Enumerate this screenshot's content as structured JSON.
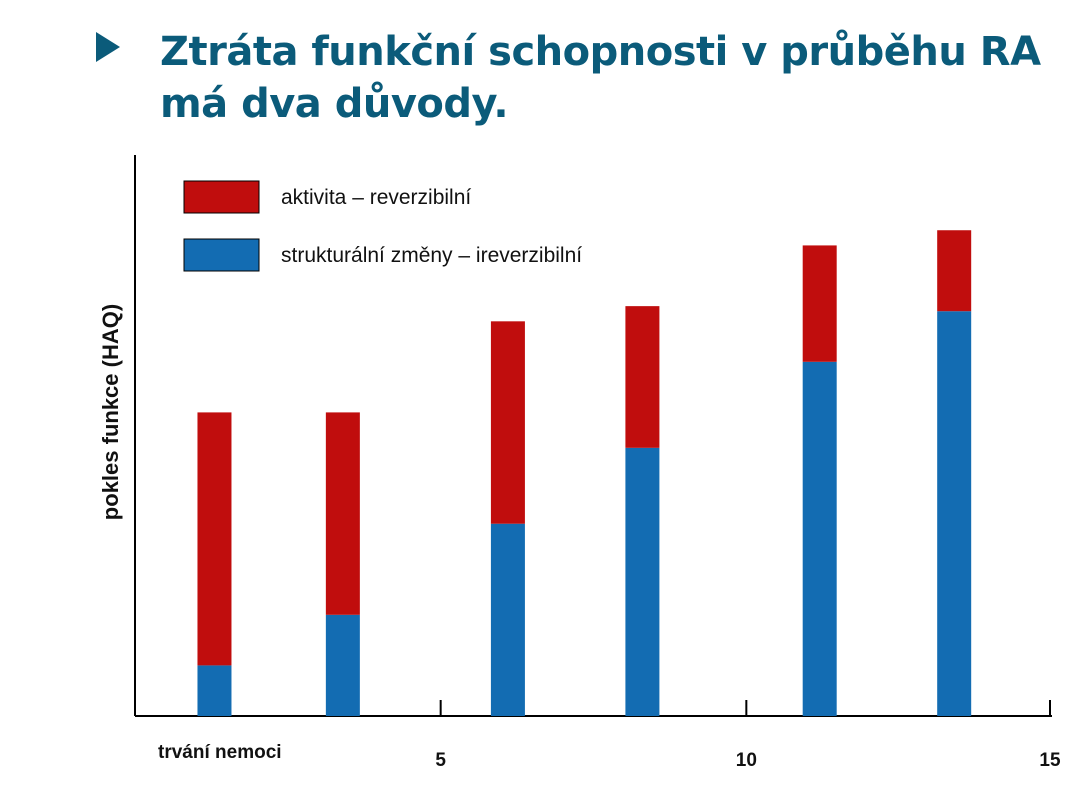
{
  "header": {
    "title_line1": "Ztráta funkční schopnosti v průběhu RA",
    "title_line2": "má dva důvody."
  },
  "colors": {
    "title": "#0b5b7a",
    "reversible": "#c00d0d",
    "irreversible": "#136cb2"
  },
  "chart_data": {
    "type": "bar",
    "stacked": true,
    "ylabel": "pokles funkce (HAQ)",
    "xlabel": "trvání nemoci",
    "x_ticks": [
      "5",
      "10",
      "15"
    ],
    "x_tick_values": [
      5,
      10,
      15
    ],
    "xlim": [
      0,
      15
    ],
    "ylim": [
      0,
      100
    ],
    "x": [
      1.3,
      3.4,
      6.1,
      8.3,
      11.2,
      13.4
    ],
    "series": [
      {
        "name": "strukturální změny – ireverzibilní",
        "color": "#136cb2",
        "values": [
          10,
          20,
          38,
          53,
          70,
          80
        ]
      },
      {
        "name": "aktivita – reverzibilní",
        "color": "#c00d0d",
        "values": [
          50,
          40,
          40,
          28,
          23,
          16
        ]
      }
    ],
    "legend": {
      "position": "top-left",
      "items": [
        "aktivita – reverzibilní",
        "strukturální změny – ireverzibilní"
      ]
    },
    "grid": false
  }
}
